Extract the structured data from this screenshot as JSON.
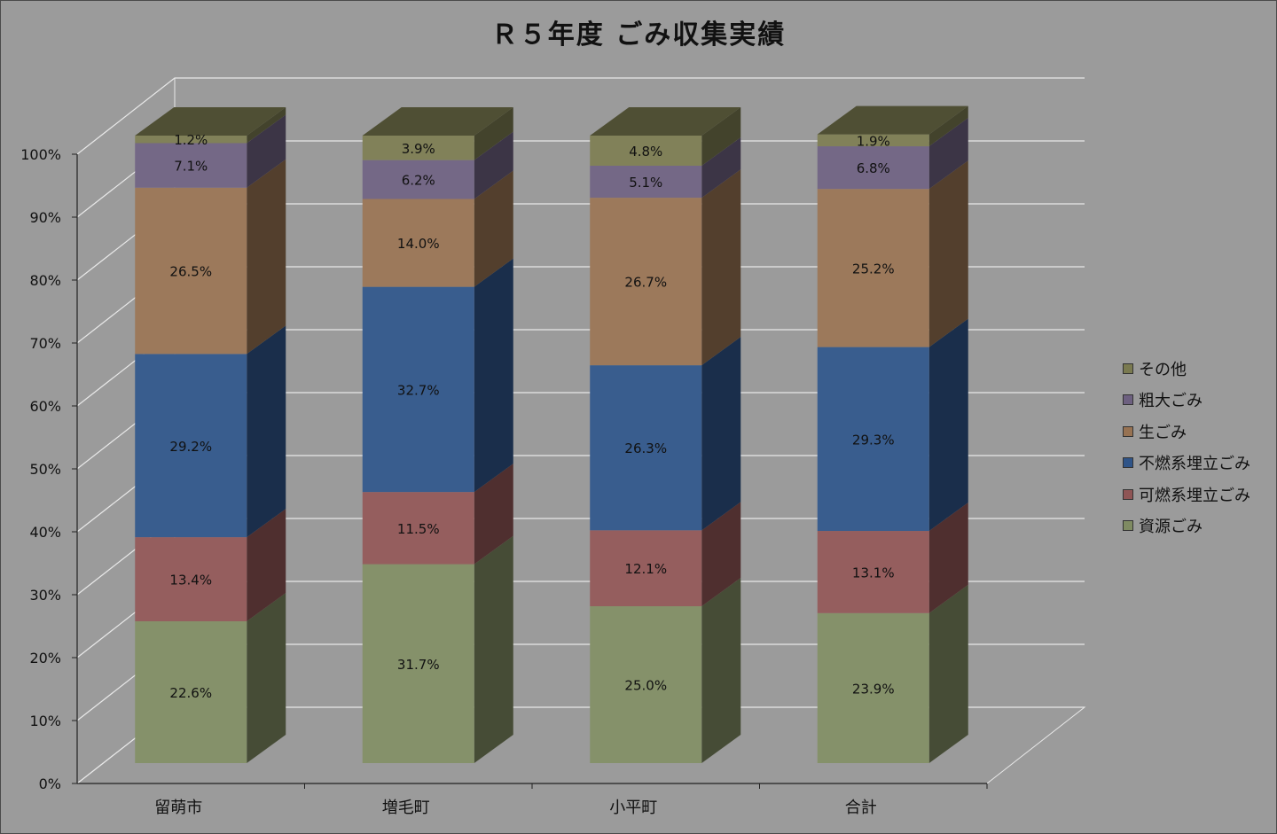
{
  "chart_data": {
    "type": "bar",
    "stacked": true,
    "three_d": true,
    "title": "Ｒ５年度 ごみ収集実績",
    "categories": [
      "留萌市",
      "増毛町",
      "小平町",
      "合計"
    ],
    "y_ticks": [
      "0%",
      "10%",
      "20%",
      "30%",
      "40%",
      "50%",
      "60%",
      "70%",
      "80%",
      "90%",
      "100%"
    ],
    "ylim": [
      0,
      100
    ],
    "grid": true,
    "legend_position": "right",
    "series": [
      {
        "name": "資源ごみ",
        "color": "#7f8b62",
        "values": [
          22.6,
          31.7,
          25.0,
          23.9
        ],
        "labels": [
          "22.6%",
          "31.7%",
          "25.0%",
          "23.9%"
        ]
      },
      {
        "name": "可燃系埋立ごみ",
        "color": "#8f5555",
        "values": [
          13.4,
          11.5,
          12.1,
          13.1
        ],
        "labels": [
          "13.4%",
          "11.5%",
          "12.1%",
          "13.1%"
        ]
      },
      {
        "name": "不燃系埋立ごみ",
        "color": "#2f5488",
        "values": [
          29.2,
          32.7,
          26.3,
          29.3
        ],
        "labels": [
          "29.2%",
          "32.7%",
          "26.3%",
          "29.3%"
        ]
      },
      {
        "name": "生ごみ",
        "color": "#977252",
        "values": [
          26.5,
          14.0,
          26.7,
          25.2
        ],
        "labels": [
          "26.5%",
          "14.0%",
          "26.7%",
          "25.2%"
        ]
      },
      {
        "name": "粗大ごみ",
        "color": "#6d6080",
        "values": [
          7.1,
          6.2,
          5.1,
          6.8
        ],
        "labels": [
          "7.1%",
          "6.2%",
          "5.1%",
          "6.8%"
        ]
      },
      {
        "name": "その他",
        "color": "#7a7a50",
        "values": [
          1.2,
          3.9,
          4.8,
          1.9
        ],
        "labels": [
          "1.2%",
          "3.9%",
          "4.8%",
          "1.9%"
        ]
      }
    ]
  }
}
